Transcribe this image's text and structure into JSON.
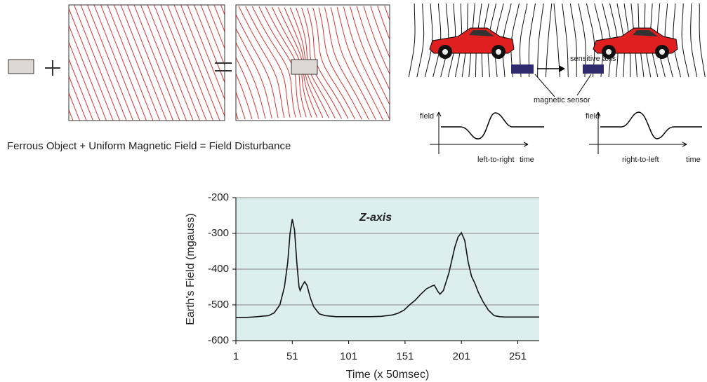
{
  "diagram": {
    "caption": "Ferrous Object + Uniform Magnetic Field = Field Disturbance",
    "sensitive_axis": "sensitive axis",
    "magnetic_sensor": "magnetic sensor",
    "left_graph": {
      "y_label": "field",
      "x_label": "time",
      "direction": "left-to-right"
    },
    "right_graph": {
      "y_label": "field",
      "x_label": "time",
      "direction": "right-to-left"
    }
  },
  "chart_data": {
    "type": "line",
    "title": "Z-axis",
    "x_label": "Time (x 50msec)",
    "y_label": "Earth's Field  (mgauss)",
    "x": [
      1,
      10,
      20,
      30,
      35,
      40,
      44,
      47,
      49,
      51,
      53,
      55,
      57,
      58,
      60,
      62,
      64,
      67,
      70,
      75,
      80,
      90,
      100,
      110,
      120,
      130,
      140,
      145,
      150,
      155,
      160,
      165,
      170,
      175,
      177,
      180,
      182,
      185,
      190,
      195,
      198,
      201,
      204,
      207,
      210,
      213,
      216,
      220,
      225,
      230,
      235,
      240,
      250,
      260,
      270
    ],
    "values": [
      -535,
      -535,
      -533,
      -530,
      -522,
      -500,
      -450,
      -380,
      -300,
      -260,
      -290,
      -380,
      -450,
      -460,
      -445,
      -435,
      -445,
      -480,
      -505,
      -525,
      -530,
      -533,
      -533,
      -533,
      -533,
      -532,
      -528,
      -523,
      -515,
      -500,
      -487,
      -470,
      -455,
      -447,
      -445,
      -462,
      -470,
      -460,
      -410,
      -340,
      -310,
      -298,
      -320,
      -380,
      -420,
      -440,
      -465,
      -490,
      -515,
      -530,
      -533,
      -534,
      -534,
      -534,
      -534
    ],
    "color": "#111111",
    "plot_background": "#dcefec",
    "grid": true,
    "xlim": [
      1,
      270
    ],
    "xticks": [
      1,
      51,
      101,
      151,
      201,
      251
    ],
    "ylim": [
      -600,
      -200
    ],
    "yticks": [
      -200,
      -300,
      -400,
      -500,
      -600
    ]
  }
}
